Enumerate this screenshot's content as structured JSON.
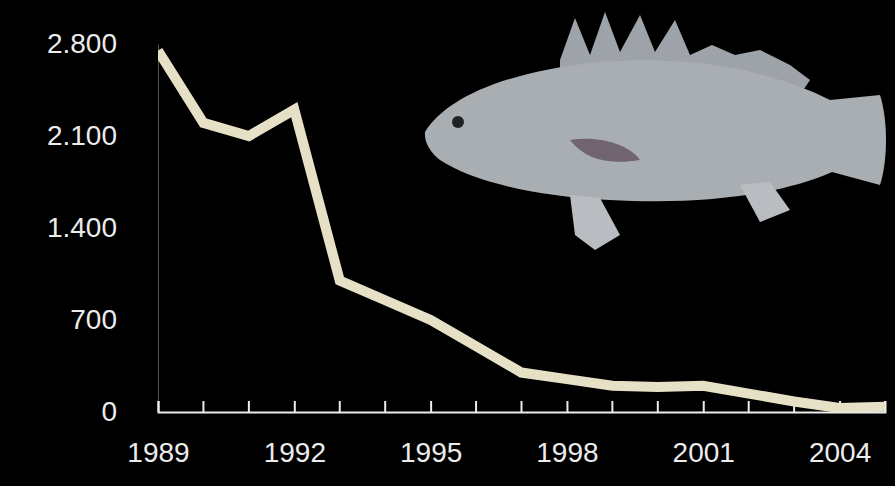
{
  "chart_data": {
    "type": "line",
    "x": [
      1989,
      1990,
      1991,
      1992,
      1993,
      1994,
      1995,
      1996,
      1997,
      1998,
      1999,
      2000,
      2001,
      2002,
      2003,
      2004,
      2005
    ],
    "values": [
      2750,
      2200,
      2100,
      2300,
      1000,
      850,
      700,
      500,
      300,
      250,
      200,
      190,
      200,
      140,
      80,
      30,
      40
    ],
    "color": "#e6e0c6",
    "xlim": [
      1989,
      2005
    ],
    "xticks": [
      1989,
      1992,
      1995,
      1998,
      2001,
      2004
    ],
    "ylim": [
      0,
      2800
    ],
    "yticks": [
      0,
      700,
      {
        "value": 1400,
        "label": "1.400"
      },
      {
        "value": 2100,
        "label": "2.100"
      },
      {
        "value": 2800,
        "label": "2.800"
      }
    ],
    "grid": false
  }
}
